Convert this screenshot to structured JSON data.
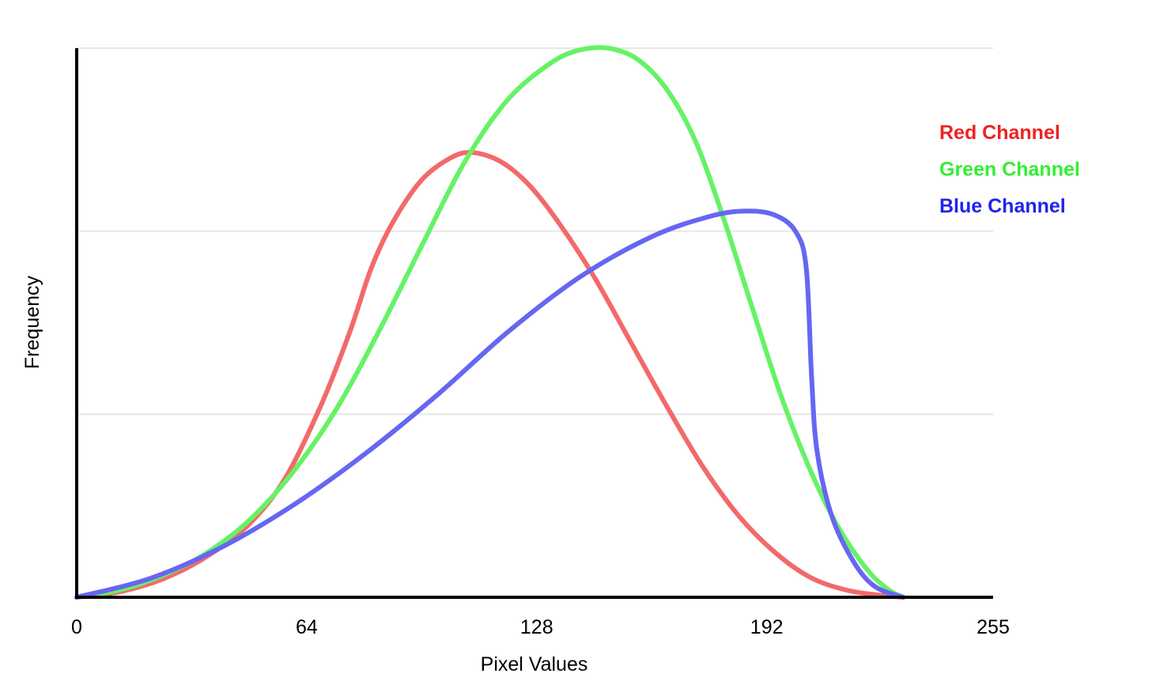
{
  "chart_data": {
    "type": "line",
    "title": "",
    "xlabel": "Pixel Values",
    "ylabel": "Frequency",
    "xlim": [
      0,
      255
    ],
    "ylim": [
      0,
      3
    ],
    "x_ticks": [
      0,
      64,
      128,
      192,
      255
    ],
    "y_ticks_labeled": false,
    "grid": "horizontal",
    "legend_position": "top-right",
    "series": [
      {
        "name": "Red Channel",
        "color": "#ee2222",
        "line_color": "#f26a6a",
        "points": [
          [
            0,
            0
          ],
          [
            12,
            0.03
          ],
          [
            24,
            0.1
          ],
          [
            36,
            0.22
          ],
          [
            48,
            0.4
          ],
          [
            58,
            0.65
          ],
          [
            68,
            1.05
          ],
          [
            76,
            1.45
          ],
          [
            82,
            1.8
          ],
          [
            88,
            2.05
          ],
          [
            96,
            2.28
          ],
          [
            104,
            2.4
          ],
          [
            110,
            2.43
          ],
          [
            118,
            2.38
          ],
          [
            126,
            2.25
          ],
          [
            134,
            2.05
          ],
          [
            144,
            1.75
          ],
          [
            154,
            1.4
          ],
          [
            164,
            1.05
          ],
          [
            174,
            0.72
          ],
          [
            184,
            0.45
          ],
          [
            194,
            0.25
          ],
          [
            204,
            0.11
          ],
          [
            214,
            0.04
          ],
          [
            224,
            0.01
          ],
          [
            230,
            0
          ]
        ]
      },
      {
        "name": "Green Channel",
        "color": "#33ee33",
        "line_color": "#66f266",
        "points": [
          [
            0,
            0
          ],
          [
            12,
            0.04
          ],
          [
            24,
            0.12
          ],
          [
            36,
            0.24
          ],
          [
            48,
            0.42
          ],
          [
            60,
            0.68
          ],
          [
            72,
            1.02
          ],
          [
            84,
            1.45
          ],
          [
            96,
            1.92
          ],
          [
            108,
            2.38
          ],
          [
            120,
            2.72
          ],
          [
            132,
            2.92
          ],
          [
            140,
            2.99
          ],
          [
            148,
            3.0
          ],
          [
            156,
            2.94
          ],
          [
            164,
            2.78
          ],
          [
            172,
            2.5
          ],
          [
            180,
            2.07
          ],
          [
            188,
            1.58
          ],
          [
            196,
            1.1
          ],
          [
            204,
            0.7
          ],
          [
            212,
            0.38
          ],
          [
            220,
            0.15
          ],
          [
            226,
            0.04
          ],
          [
            230,
            0
          ]
        ]
      },
      {
        "name": "Blue Channel",
        "color": "#2222ee",
        "line_color": "#6666f2",
        "points": [
          [
            0,
            0
          ],
          [
            20,
            0.1
          ],
          [
            40,
            0.27
          ],
          [
            60,
            0.5
          ],
          [
            80,
            0.78
          ],
          [
            100,
            1.1
          ],
          [
            120,
            1.45
          ],
          [
            140,
            1.75
          ],
          [
            160,
            1.97
          ],
          [
            176,
            2.08
          ],
          [
            186,
            2.11
          ],
          [
            194,
            2.09
          ],
          [
            200,
            2.0
          ],
          [
            203,
            1.8
          ],
          [
            204.5,
            1.2
          ],
          [
            206,
            0.8
          ],
          [
            210,
            0.45
          ],
          [
            216,
            0.2
          ],
          [
            222,
            0.06
          ],
          [
            230,
            0
          ]
        ]
      }
    ]
  }
}
